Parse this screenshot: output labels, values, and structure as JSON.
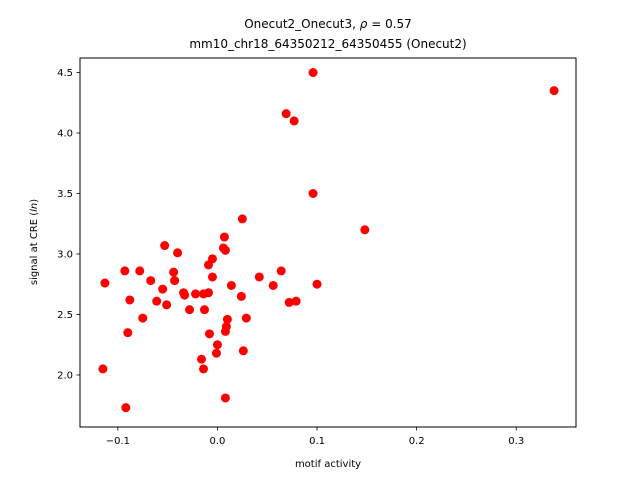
{
  "chart_data": {
    "type": "scatter",
    "title_line1_prefix": "Onecut2_Onecut3, ",
    "title_rho_symbol": "ρ",
    "title_rho_value": " = 0.57",
    "title_line2": "mm10_chr18_64350212_64350455 (Onecut2)",
    "xlabel": "motif activity",
    "ylabel_prefix": "signal at CRE (",
    "ylabel_italic": "ln",
    "ylabel_suffix": ")",
    "xlim": [
      -0.138,
      0.36
    ],
    "ylim": [
      1.57,
      4.62
    ],
    "x_ticks": [
      -0.1,
      0.0,
      0.1,
      0.2,
      0.3
    ],
    "x_tick_labels": [
      "−0.1",
      "0.0",
      "0.1",
      "0.2",
      "0.3"
    ],
    "y_ticks": [
      2.0,
      2.5,
      3.0,
      3.5,
      4.0,
      4.5
    ],
    "y_tick_labels": [
      "2.0",
      "2.5",
      "3.0",
      "3.5",
      "4.0",
      "4.5"
    ],
    "grid": false,
    "marker_color": "#ff0000",
    "series": [
      {
        "points": [
          {
            "x": -0.115,
            "y": 2.05
          },
          {
            "x": -0.113,
            "y": 2.76
          },
          {
            "x": -0.093,
            "y": 2.86
          },
          {
            "x": -0.092,
            "y": 1.73
          },
          {
            "x": -0.09,
            "y": 2.35
          },
          {
            "x": -0.088,
            "y": 2.62
          },
          {
            "x": -0.078,
            "y": 2.86
          },
          {
            "x": -0.075,
            "y": 2.47
          },
          {
            "x": -0.067,
            "y": 2.78
          },
          {
            "x": -0.061,
            "y": 2.61
          },
          {
            "x": -0.055,
            "y": 2.71
          },
          {
            "x": -0.053,
            "y": 3.07
          },
          {
            "x": -0.051,
            "y": 2.58
          },
          {
            "x": -0.044,
            "y": 2.85
          },
          {
            "x": -0.043,
            "y": 2.78
          },
          {
            "x": -0.04,
            "y": 3.01
          },
          {
            "x": -0.034,
            "y": 2.68
          },
          {
            "x": -0.033,
            "y": 2.66
          },
          {
            "x": -0.028,
            "y": 2.54
          },
          {
            "x": -0.022,
            "y": 2.67
          },
          {
            "x": -0.016,
            "y": 2.13
          },
          {
            "x": -0.014,
            "y": 2.67
          },
          {
            "x": -0.013,
            "y": 2.54
          },
          {
            "x": -0.014,
            "y": 2.05
          },
          {
            "x": -0.009,
            "y": 2.91
          },
          {
            "x": -0.009,
            "y": 2.68
          },
          {
            "x": -0.008,
            "y": 2.34
          },
          {
            "x": -0.005,
            "y": 2.96
          },
          {
            "x": -0.005,
            "y": 2.81
          },
          {
            "x": -0.001,
            "y": 2.18
          },
          {
            "x": 0.0,
            "y": 2.25
          },
          {
            "x": 0.006,
            "y": 3.05
          },
          {
            "x": 0.007,
            "y": 3.14
          },
          {
            "x": 0.008,
            "y": 3.03
          },
          {
            "x": 0.008,
            "y": 2.36
          },
          {
            "x": 0.009,
            "y": 2.4
          },
          {
            "x": 0.01,
            "y": 2.46
          },
          {
            "x": 0.008,
            "y": 1.81
          },
          {
            "x": 0.014,
            "y": 2.74
          },
          {
            "x": 0.024,
            "y": 2.65
          },
          {
            "x": 0.025,
            "y": 3.29
          },
          {
            "x": 0.026,
            "y": 2.2
          },
          {
            "x": 0.029,
            "y": 2.47
          },
          {
            "x": 0.042,
            "y": 2.81
          },
          {
            "x": 0.056,
            "y": 2.74
          },
          {
            "x": 0.064,
            "y": 2.86
          },
          {
            "x": 0.069,
            "y": 4.16
          },
          {
            "x": 0.072,
            "y": 2.6
          },
          {
            "x": 0.077,
            "y": 4.1
          },
          {
            "x": 0.079,
            "y": 2.61
          },
          {
            "x": 0.096,
            "y": 4.5
          },
          {
            "x": 0.096,
            "y": 3.5
          },
          {
            "x": 0.1,
            "y": 2.75
          },
          {
            "x": 0.148,
            "y": 3.2
          },
          {
            "x": 0.338,
            "y": 4.35
          }
        ]
      }
    ]
  }
}
